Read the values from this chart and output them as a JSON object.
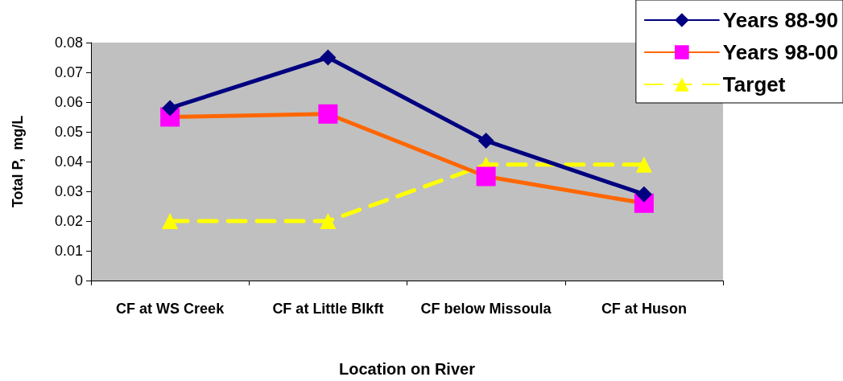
{
  "chart_data": {
    "type": "line",
    "xlabel": "Location on River",
    "ylabel": "Total P,  mg/L",
    "categories": [
      "CF at WS Creek",
      "CF at Little Blkft",
      "CF below Missoula",
      "CF at Huson"
    ],
    "series": [
      {
        "name": "Years 88-90",
        "color": "#000080",
        "marker": "diamond",
        "values": [
          0.058,
          0.075,
          0.047,
          0.029
        ]
      },
      {
        "name": "Years 98-00",
        "color": "#ff6600",
        "colors": [
          "#ff00ff",
          "#ff00ff",
          "#ff00ff",
          "#ff00ff"
        ],
        "marker": "square",
        "values": [
          0.055,
          0.056,
          0.035,
          0.026
        ]
      },
      {
        "name": "Target",
        "color": "#ffff00",
        "marker": "triangle",
        "line_style": "dashed",
        "values": [
          0.02,
          0.02,
          0.039,
          0.039
        ]
      }
    ],
    "ylim": [
      0,
      0.08
    ],
    "yticks": [
      0,
      0.01,
      0.02,
      0.03,
      0.04,
      0.05,
      0.06,
      0.07,
      0.08
    ],
    "grid": false,
    "legend": "top right"
  }
}
